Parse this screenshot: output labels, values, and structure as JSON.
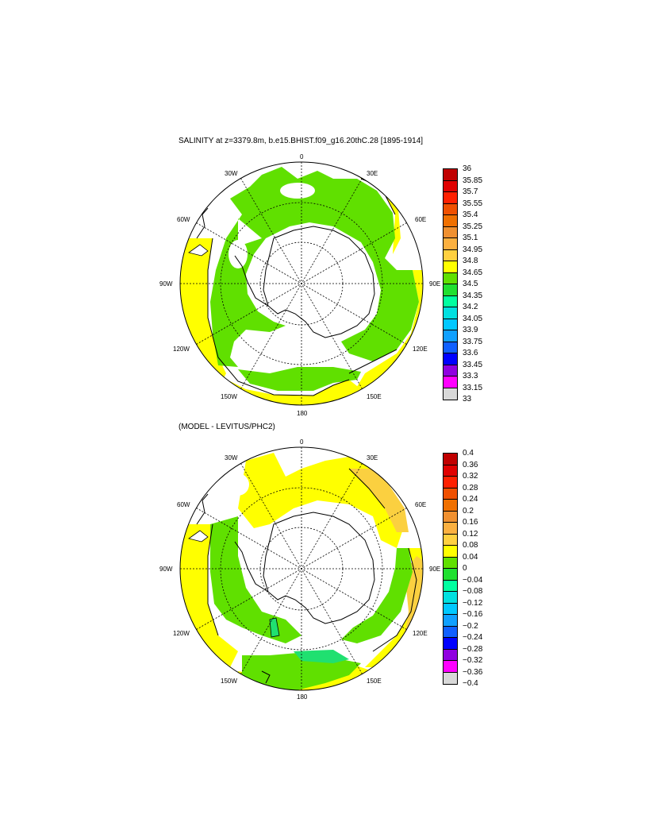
{
  "panels": [
    {
      "title": "SALINITY at z=3379.8m, b.e15.BHIST.f09_g16.20thC.28 [1895-1914]",
      "lon_labels": {
        "top": "0",
        "e30": "30E",
        "e60": "60E",
        "e90": "90E",
        "e120": "120E",
        "e150": "150E",
        "bottom": "180",
        "w150": "150W",
        "w120": "120W",
        "w90": "90W",
        "w60": "60W",
        "w30": "30W"
      },
      "colorbar": {
        "labels": [
          "36",
          "35.85",
          "35.7",
          "35.55",
          "35.4",
          "35.25",
          "35.1",
          "34.95",
          "34.8",
          "34.65",
          "34.5",
          "34.35",
          "34.2",
          "34.05",
          "33.9",
          "33.75",
          "33.6",
          "33.45",
          "33.3",
          "33.15",
          "33"
        ],
        "colors": [
          "#c00000",
          "#e00000",
          "#ff2000",
          "#f05000",
          "#f07000",
          "#f09030",
          "#fbb040",
          "#ffd040",
          "#ffff00",
          "#60e000",
          "#20e030",
          "#00ffa0",
          "#00e0e0",
          "#00c8ff",
          "#10a0ff",
          "#1060ff",
          "#0000ff",
          "#9000e0",
          "#ff00ff",
          "#d8d8d8",
          "#707070"
        ]
      }
    },
    {
      "title": "(MODEL - LEVITUS/PHC2)",
      "lon_labels": {
        "top": "0",
        "e30": "30E",
        "e60": "60E",
        "e90": "90E",
        "e120": "120E",
        "e150": "150E",
        "bottom": "180",
        "w150": "150W",
        "w120": "120W",
        "w90": "90W",
        "w60": "60W",
        "w30": "30W"
      },
      "colorbar": {
        "labels": [
          "0.4",
          "0.36",
          "0.32",
          "0.28",
          "0.24",
          "0.2",
          "0.16",
          "0.12",
          "0.08",
          "0.04",
          "0",
          "−0.04",
          "−0.08",
          "−0.12",
          "−0.16",
          "−0.2",
          "−0.24",
          "−0.28",
          "−0.32",
          "−0.36",
          "−0.4"
        ],
        "colors": [
          "#c00000",
          "#e00000",
          "#ff2000",
          "#f05000",
          "#f07000",
          "#f09030",
          "#fbb040",
          "#ffd040",
          "#ffff00",
          "#60e000",
          "#20e030",
          "#00ffa0",
          "#00e0e0",
          "#00c8ff",
          "#10a0ff",
          "#1060ff",
          "#0000ff",
          "#9000e0",
          "#ff00ff",
          "#d8d8d8",
          "#707070"
        ]
      }
    }
  ],
  "colors": {
    "salinity_yellow": "#ffff00",
    "salinity_green": "#60e000",
    "anomaly_yellow": "#ffff00",
    "anomaly_orange": "#fbd040",
    "anomaly_green": "#60e000",
    "anomaly_cyan": "#20e060"
  }
}
